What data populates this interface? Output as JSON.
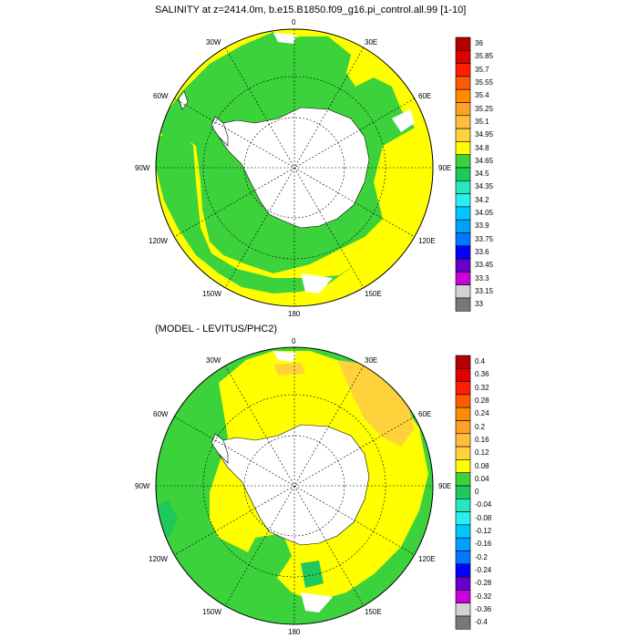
{
  "panel1": {
    "title": "SALINITY at z=2414.0m, b.e15.B1850.f09_g16.pi_control.all.99 [1-10]",
    "colorbar_labels": [
      "36",
      "35.85",
      "35.7",
      "35.55",
      "35.4",
      "35.25",
      "35.1",
      "34.95",
      "34.8",
      "34.65",
      "34.5",
      "34.35",
      "34.2",
      "34.05",
      "33.9",
      "33.75",
      "33.6",
      "33.45",
      "33.3",
      "33.15",
      "33"
    ]
  },
  "panel2": {
    "title": "(MODEL - LEVITUS/PHC2)",
    "colorbar_labels": [
      "0.4",
      "0.36",
      "0.32",
      "0.28",
      "0.24",
      "0.2",
      "0.16",
      "0.12",
      "0.08",
      "0.04",
      "0",
      "-0.04",
      "-0.08",
      "-0.12",
      "-0.16",
      "-0.2",
      "-0.24",
      "-0.28",
      "-0.32",
      "-0.36",
      "-0.4"
    ]
  },
  "longitude_labels": {
    "top": "0",
    "e30": "30E",
    "e60": "60E",
    "e90": "90E",
    "e120": "120E",
    "e150": "150E",
    "bottom": "180",
    "w150": "150W",
    "w120": "120W",
    "w90": "90W",
    "w60": "60W",
    "w30": "30W"
  },
  "colors": {
    "cb1": [
      "#b40000",
      "#e00000",
      "#ff1e00",
      "#ff5a00",
      "#ff8c00",
      "#ffa028",
      "#ffbe3c",
      "#ffd23c",
      "#ffff00",
      "#3cd23c",
      "#1ec85a",
      "#28e6be",
      "#28f0f0",
      "#00c8ff",
      "#00a0ff",
      "#0078ff",
      "#0000ff",
      "#6400c8",
      "#c800dc",
      "#d2d2d2",
      "#787878"
    ],
    "cb2": [
      "#b40000",
      "#e00000",
      "#ff1e00",
      "#ff5a00",
      "#ff8c00",
      "#ffa028",
      "#ffbe3c",
      "#ffd23c",
      "#ffff00",
      "#3cd23c",
      "#1ec85a",
      "#28e6be",
      "#28f0f0",
      "#00c8ff",
      "#00a0ff",
      "#0078ff",
      "#0000ff",
      "#6400c8",
      "#c800dc",
      "#d2d2d2",
      "#787878"
    ],
    "green": "#3cd23c",
    "yellow": "#ffff00",
    "orange": "#ffd23c",
    "cyan": "#1ec85a"
  }
}
